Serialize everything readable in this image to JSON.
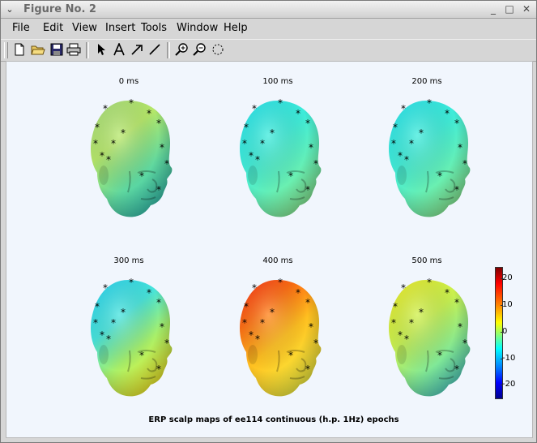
{
  "window": {
    "title": "Figure No. 2"
  },
  "menu": [
    "File",
    "Edit",
    "View",
    "Insert",
    "Tools",
    "Window",
    "Help"
  ],
  "toolbar_icons": [
    "new-file-icon",
    "open-folder-icon",
    "save-icon",
    "print-icon",
    "pointer-arrow-icon",
    "text-tool-icon",
    "arrow-tool-icon",
    "line-tool-icon",
    "zoom-in-icon",
    "zoom-out-icon",
    "rotate-icon"
  ],
  "figure": {
    "plots": [
      {
        "label": "0 ms",
        "palette": "zero"
      },
      {
        "label": "100 ms",
        "palette": "cyan"
      },
      {
        "label": "200 ms",
        "palette": "cyan"
      },
      {
        "label": "300 ms",
        "palette": "mixed"
      },
      {
        "label": "400 ms",
        "palette": "red"
      },
      {
        "label": "500 ms",
        "palette": "yellow"
      }
    ],
    "colorbar_ticks": [
      "20",
      "10",
      "0",
      "-10",
      "-20"
    ],
    "caption": "ERP scalp maps of ee114 continuous (h.p. 1Hz) epochs"
  }
}
